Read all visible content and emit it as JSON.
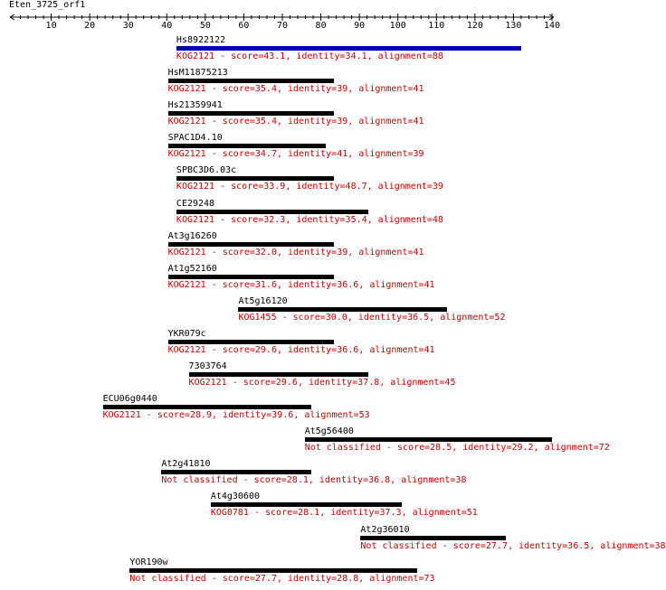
{
  "query": {
    "name": "Eten_3725_orf1",
    "length_max": 140,
    "ticks": [
      10,
      20,
      30,
      40,
      50,
      60,
      70,
      80,
      90,
      100,
      110,
      120,
      130,
      140
    ]
  },
  "colors": {
    "best_hit_bar": "#0000b4",
    "hit_bar": "#000000",
    "desc_text": "#cc0000"
  },
  "hits": [
    {
      "name": "Hs8922122",
      "start": 42.5,
      "end": 132,
      "desc": "KOG2121 - score=43.1, identity=34.1, alignment=88",
      "best": true
    },
    {
      "name": "HsM11875213",
      "start": 40.3,
      "end": 83.3,
      "desc": "KOG2121 - score=35.4, identity=39, alignment=41"
    },
    {
      "name": "Hs21359941",
      "start": 40.3,
      "end": 83.3,
      "desc": "KOG2121 - score=35.4, identity=39, alignment=41"
    },
    {
      "name": "SPAC1D4.10",
      "start": 40.3,
      "end": 81.2,
      "desc": "KOG2121 - score=34.7, identity=41, alignment=39"
    },
    {
      "name": "SPBC3D6.03c",
      "start": 42.5,
      "end": 83.3,
      "desc": "KOG2121 - score=33.9, identity=48.7, alignment=39"
    },
    {
      "name": "CE29248",
      "start": 42.5,
      "end": 92.4,
      "desc": "KOG2121 - score=32.3, identity=35.4, alignment=48"
    },
    {
      "name": "At3g16260",
      "start": 40.3,
      "end": 83.3,
      "desc": "KOG2121 - score=32.0, identity=39, alignment=41"
    },
    {
      "name": "At1g52160",
      "start": 40.3,
      "end": 83.3,
      "desc": "KOG2121 - score=31.6, identity=36.6, alignment=41"
    },
    {
      "name": "At5g16120",
      "start": 58.6,
      "end": 112.7,
      "desc": "KOG1455 - score=30.0, identity=36.5, alignment=52"
    },
    {
      "name": "YKR079c",
      "start": 40.3,
      "end": 83.3,
      "desc": "KOG2121 - score=29.6, identity=36.6, alignment=41"
    },
    {
      "name": "7303764",
      "start": 45.7,
      "end": 92.4,
      "desc": "KOG2121 - score=29.6, identity=37.8, alignment=45"
    },
    {
      "name": "ECU06g0440",
      "start": 23.4,
      "end": 77.5,
      "desc": "KOG2121 - score=28.9, identity=39.6, alignment=53"
    },
    {
      "name": "At5g56400",
      "start": 75.8,
      "end": 140,
      "desc": "Not classified - score=28.5, identity=29.2, alignment=72"
    },
    {
      "name": "At2g41810",
      "start": 38.6,
      "end": 77.5,
      "desc": "Not classified - score=28.1, identity=36.8, alignment=38"
    },
    {
      "name": "At4g30600",
      "start": 51.4,
      "end": 101,
      "desc": "KOG0781 - score=28.1, identity=37.3, alignment=51"
    },
    {
      "name": "At2g36010",
      "start": 90.3,
      "end": 128,
      "desc": "Not classified - score=27.7, identity=36.5, alignment=38"
    },
    {
      "name": "YOR190w",
      "start": 30.4,
      "end": 105,
      "desc": "Not classified - score=27.7, identity=28.8, alignment=73"
    }
  ]
}
